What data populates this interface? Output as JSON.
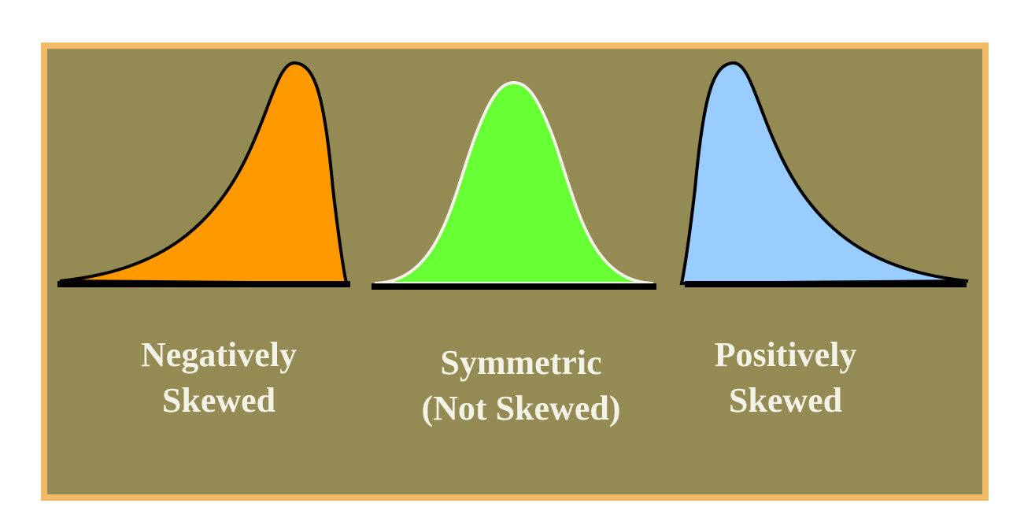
{
  "diagram": {
    "panels": [
      {
        "id": "negative",
        "label_lines": [
          "Negatively",
          "Skewed"
        ],
        "fill_color": "#FF9900",
        "stroke_color": "#000000"
      },
      {
        "id": "symmetric",
        "label_lines": [
          "Symmetric",
          "(Not Skewed)"
        ],
        "fill_color": "#66FF33",
        "stroke_color": "#F2F2E6"
      },
      {
        "id": "positive",
        "label_lines": [
          "Positively",
          "Skewed"
        ],
        "fill_color": "#99CCFF",
        "stroke_color": "#000000"
      }
    ],
    "colors": {
      "border": "#F2B966",
      "background": "#948A54",
      "text": "#F2F2E6",
      "baseline": "#000000"
    }
  }
}
